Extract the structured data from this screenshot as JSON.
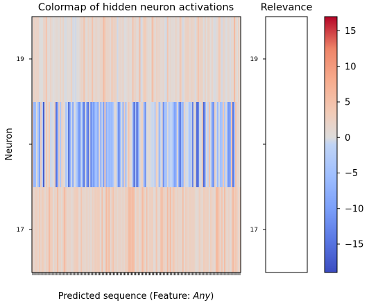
{
  "chart_data": [
    {
      "type": "heatmap",
      "title": "Colormap of hidden neuron activations",
      "xlabel": "Predicted sequence (Feature: Any)",
      "xlabel_prefix": "Predicted sequence (Feature: ",
      "xlabel_italic": "Any",
      "xlabel_suffix": ")",
      "ylabel": "Neuron",
      "yticks": [
        "19",
        "17"
      ],
      "rows": 3,
      "columns": 150,
      "row_profile": [
        {
          "row": "top (neuron 19)",
          "typical_value": 1,
          "range": [
            -2,
            6
          ]
        },
        {
          "row": "middle",
          "typical_value": -2,
          "range": [
            -18,
            5
          ]
        },
        {
          "row": "bottom (neuron 17)",
          "typical_value": 2,
          "range": [
            -1,
            6
          ]
        }
      ],
      "colormap": "coolwarm"
    },
    {
      "type": "heatmap",
      "title": "Relevance",
      "yticks": [
        "19",
        "17"
      ],
      "cells": "empty"
    },
    {
      "type": "colorbar",
      "colormap": "coolwarm",
      "vmin": -19,
      "vmax": 17,
      "ticks": [
        15,
        10,
        5,
        0,
        -5,
        -10,
        -15
      ],
      "tick_labels": [
        "15",
        "10",
        "5",
        "0",
        "−5",
        "−10",
        "−15"
      ]
    }
  ]
}
